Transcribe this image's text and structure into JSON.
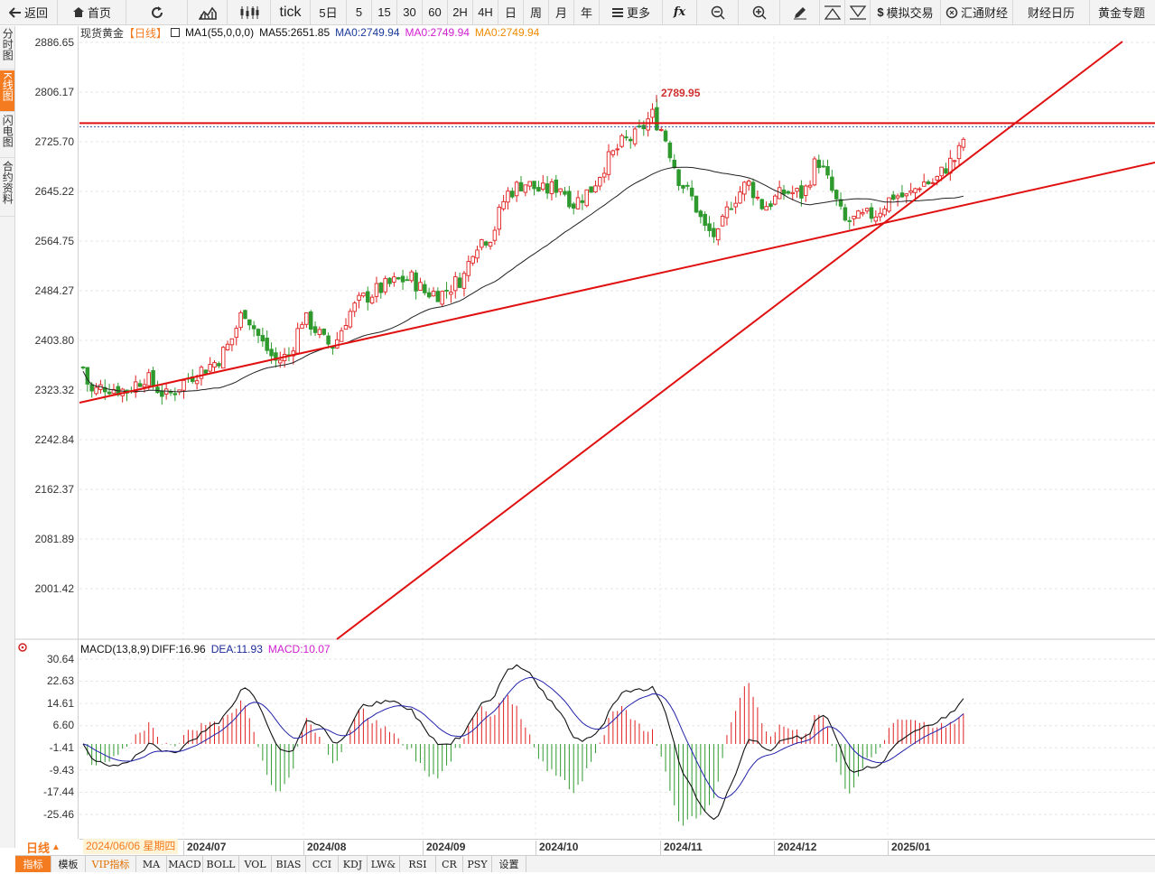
{
  "toolbar": {
    "back": "返回",
    "home": "首页",
    "refresh": "",
    "tick": "tick",
    "periods": [
      "5日",
      "5",
      "15",
      "30",
      "60",
      "2H",
      "4H",
      "日",
      "周",
      "月",
      "年"
    ],
    "more": "更多",
    "fx": "fx",
    "sim_trade": "模拟交易",
    "fxfinance": "汇通财经",
    "calendar": "财经日历",
    "gold": "黄金专题"
  },
  "side_tabs": [
    {
      "label": "分时图",
      "active": false
    },
    {
      "label": "K线图",
      "active": true
    },
    {
      "label": "闪电图",
      "active": false
    },
    {
      "label": "合约资料",
      "active": false
    }
  ],
  "info": {
    "symbol": "现货黄金",
    "period": "【日线】",
    "ma1": "MA1(55,0,0,0)",
    "ma55": "MA55:2651.85",
    "ma0_a": "MA0:2749.94",
    "ma0_b": "MA0:2749.94",
    "ma0_c": "MA0:2749.94"
  },
  "price_axis": [
    "2886.65",
    "2806.17",
    "2725.70",
    "2645.22",
    "2564.75",
    "2484.27",
    "2403.80",
    "2323.32",
    "2242.84",
    "2162.37",
    "2081.89",
    "2001.42"
  ],
  "high_label": "2789.95",
  "macd": {
    "title": "MACD(13,8,9)",
    "diff": "DIFF:16.96",
    "dea": "DEA:11.93",
    "macd": "MACD:10.07",
    "axis": [
      "30.64",
      "22.63",
      "14.61",
      "6.60",
      "-1.41",
      "-9.43",
      "-17.44",
      "-25.46"
    ]
  },
  "dates": [
    "2024/07",
    "2024/08",
    "2024/09",
    "2024/10",
    "2024/11",
    "2024/12",
    "2025/01"
  ],
  "period_label": "日线",
  "cursor_date": "2024/06/06 星期四",
  "bottom_tabs": [
    "指标",
    "模板",
    "VIP指标",
    "MA",
    "MACD",
    "BOLL",
    "VOL",
    "BIAS",
    "CCI",
    "KDJ",
    "LW&",
    "RSI",
    "CR",
    "PSY",
    "设置"
  ],
  "colors": {
    "up": "#e02020",
    "down": "#2e9a2e",
    "trend": "#e01010",
    "ma": "#222222",
    "dea": "#2222aa"
  },
  "chart_data": {
    "type": "candlestick",
    "y_range": [
      1961.18,
      2926.89
    ],
    "reference_price": 2749.94,
    "high": 2789.95,
    "ma55": 2651.85,
    "macd_range": [
      -33.47,
      38.65
    ],
    "latest": {
      "diff": 16.96,
      "dea": 11.93,
      "macd": 10.07
    }
  }
}
